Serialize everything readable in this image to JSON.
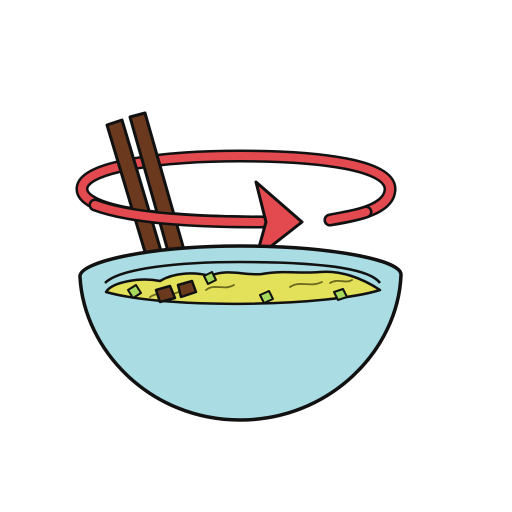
{
  "illustration": {
    "icon_name": "stir-noodles-icon",
    "elements": {
      "bowl": "bowl-icon",
      "noodles": "noodles-icon",
      "chopsticks": "chopsticks-icon",
      "stir_arrow": "circular-arrow-icon",
      "herbs": "herb-flakes-icon"
    },
    "colors": {
      "outline": "#111111",
      "bowl": "#a9dde3",
      "bowl_inner": "#bfe7ec",
      "noodles": "#e3e05a",
      "noodle_lines": "#6a6a20",
      "chopsticks": "#6b3a1e",
      "arrow": "#e24a4f",
      "herbs": "#a6d95c"
    }
  }
}
